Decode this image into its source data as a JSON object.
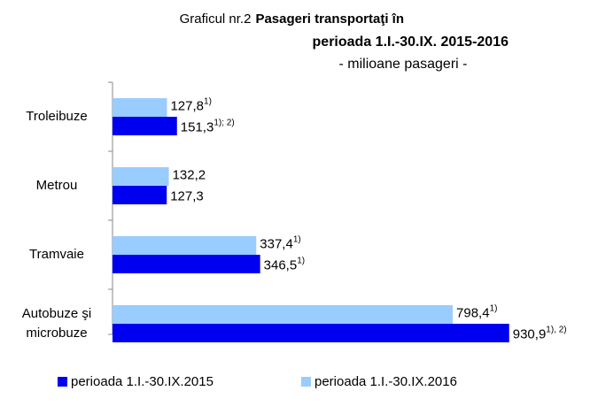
{
  "chart_data": {
    "type": "barh",
    "title_prefix": "Graficul nr.2",
    "title": [
      "Pasageri transportaţi în",
      "perioada 1.I.-30.IX. 2015-2016"
    ],
    "subtitle": "- milioane pasageri -",
    "categories": [
      "Troleibuze",
      "Metrou",
      "Tramvaie",
      "Autobuze şi microbuze"
    ],
    "series": [
      {
        "name": "perioada 1.I.-30.IX.2015",
        "color": "#0000f0",
        "values": [
          151.3,
          127.3,
          346.5,
          930.9
        ],
        "value_labels": [
          "151,3",
          "127,3",
          "346,5",
          "930,9"
        ],
        "value_notes": [
          "1); 2)",
          null,
          "1)",
          "1), 2)"
        ]
      },
      {
        "name": "perioada 1.I.-30.IX.2016",
        "color": "#99ccff",
        "values": [
          127.8,
          132.2,
          337.4,
          798.4
        ],
        "value_labels": [
          "127,8",
          "132,2",
          "337,4",
          "798,4"
        ],
        "value_notes": [
          "1)",
          null,
          "1)",
          "1)"
        ]
      }
    ],
    "xlim": [
      0,
      1000
    ],
    "legend": "bottom"
  }
}
